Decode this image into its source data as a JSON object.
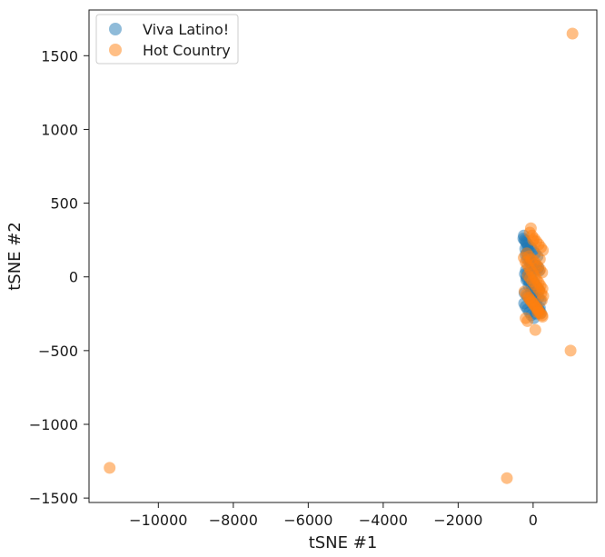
{
  "chart_data": {
    "type": "scatter",
    "title": "",
    "xlabel": "tSNE #1",
    "ylabel": "tSNE #2",
    "xlim": [
      -11850,
      1700
    ],
    "ylim": [
      -1530,
      1810
    ],
    "xticks": [
      -10000,
      -8000,
      -6000,
      -4000,
      -2000,
      0
    ],
    "yticks": [
      -1500,
      -1000,
      -500,
      0,
      500,
      1000,
      1500
    ],
    "grid": false,
    "legend_position": "top-left",
    "series": [
      {
        "name": "Viva Latino!",
        "color": "#1f77b4",
        "x": [
          -250,
          -230,
          -180,
          -150,
          -120,
          -200,
          -160,
          -100,
          -60,
          -20,
          40,
          80,
          120,
          160,
          -220,
          -180,
          -140,
          -90,
          -40,
          0,
          60,
          100,
          150,
          200,
          -240,
          -200,
          -150,
          -100,
          -50,
          20,
          70,
          130,
          180,
          -210,
          -170,
          -110,
          -70,
          -30,
          30,
          90,
          140,
          -190,
          -130,
          -80,
          -40,
          10,
          50,
          110,
          160,
          -230,
          -160,
          -90,
          -20,
          40,
          100,
          170,
          210,
          -260,
          -200,
          -140,
          -60,
          0,
          60,
          120,
          -180,
          -120,
          -50,
          20,
          80,
          150
        ],
        "y": [
          280,
          250,
          230,
          200,
          180,
          150,
          120,
          100,
          90,
          80,
          70,
          60,
          50,
          40,
          20,
          0,
          -20,
          -40,
          -60,
          -80,
          -100,
          -120,
          -140,
          -160,
          -180,
          -200,
          -220,
          -240,
          -260,
          -280,
          -250,
          -230,
          -210,
          190,
          160,
          130,
          110,
          95,
          85,
          75,
          65,
          45,
          30,
          10,
          -10,
          -30,
          -50,
          -70,
          -90,
          -110,
          -130,
          -150,
          -170,
          -190,
          -210,
          -230,
          -245,
          260,
          240,
          220,
          200,
          180,
          160,
          140,
          -20,
          -60,
          -100,
          -140,
          -180,
          -220
        ]
      },
      {
        "name": "Hot Country",
        "color": "#ff7f0e",
        "x": [
          1050,
          1000,
          -11300,
          -700,
          -250,
          -200,
          -150,
          -100,
          -50,
          0,
          50,
          100,
          150,
          200,
          250,
          -230,
          -180,
          -120,
          -60,
          0,
          60,
          120,
          180,
          240,
          -200,
          -150,
          -90,
          -30,
          30,
          90,
          150,
          210,
          260,
          -170,
          -110,
          -50,
          10,
          70,
          130,
          190,
          240,
          -140,
          -80,
          -20,
          40,
          100,
          160,
          220,
          270,
          -100,
          -40,
          20,
          80,
          140,
          200,
          250,
          -60,
          0,
          60,
          120,
          180,
          230
        ],
        "y": [
          1650,
          -500,
          -1295,
          -1365,
          130,
          100,
          80,
          60,
          40,
          20,
          0,
          -20,
          -40,
          -60,
          -80,
          -100,
          -120,
          -140,
          -160,
          -180,
          -200,
          -220,
          -240,
          -260,
          -280,
          -300,
          300,
          280,
          260,
          240,
          220,
          200,
          180,
          160,
          140,
          120,
          110,
          90,
          70,
          50,
          30,
          10,
          -10,
          -30,
          -50,
          -70,
          -90,
          -110,
          -130,
          -150,
          -170,
          -190,
          -210,
          -230,
          -250,
          -270,
          330,
          250,
          -360,
          -240,
          120,
          -160
        ]
      }
    ]
  }
}
